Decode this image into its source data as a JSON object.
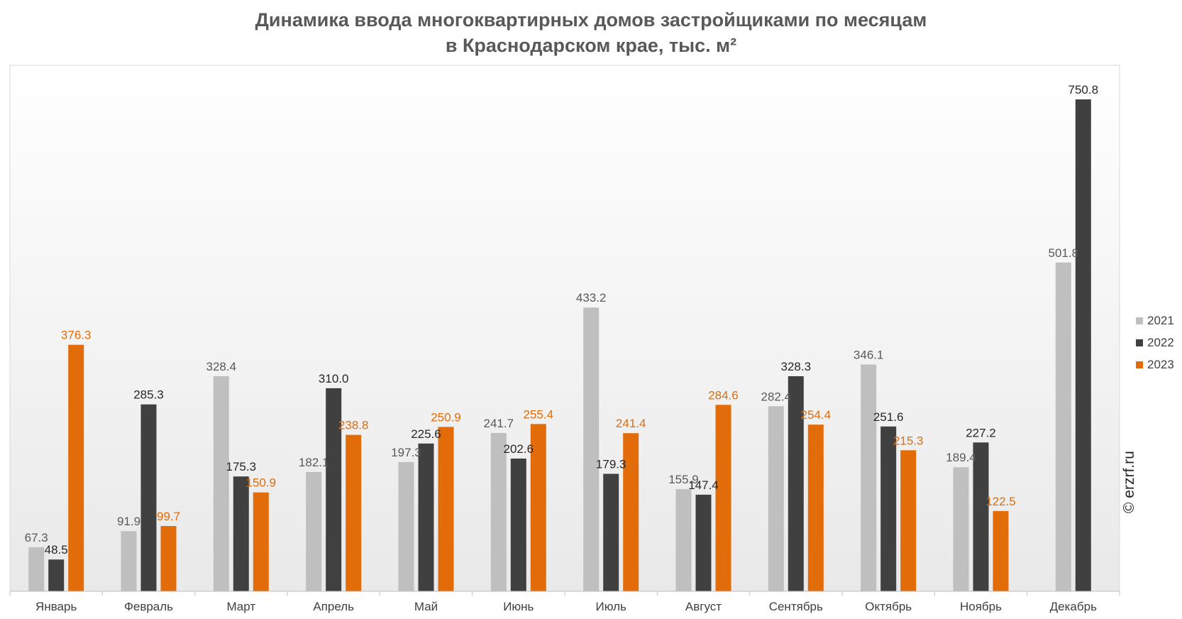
{
  "title_lines": [
    "Динамика ввода многоквартирных домов застройщиками по месяцам",
    "в Краснодарском крае, тыс. м²"
  ],
  "watermark": "© erzrf.ru",
  "colors": {
    "2021": "#bfbfbf",
    "2022": "#404040",
    "2023": "#e36c0a"
  },
  "chart_data": {
    "type": "bar",
    "title": "Динамика ввода многоквартирных домов застройщиками по месяцам в Краснодарском крае, тыс. м²",
    "categories": [
      "Январь",
      "Февраль",
      "Март",
      "Апрель",
      "Май",
      "Июнь",
      "Июль",
      "Август",
      "Сентябрь",
      "Октябрь",
      "Ноябрь",
      "Декабрь"
    ],
    "series": [
      {
        "name": "2021",
        "values": [
          67.3,
          91.9,
          328.4,
          182.1,
          197.3,
          241.7,
          433.2,
          155.9,
          282.4,
          346.1,
          189.4,
          501.8
        ]
      },
      {
        "name": "2022",
        "values": [
          48.5,
          285.3,
          175.3,
          310.0,
          225.6,
          202.6,
          179.3,
          147.4,
          328.3,
          251.6,
          227.2,
          750.8
        ]
      },
      {
        "name": "2023",
        "values": [
          376.3,
          99.7,
          150.9,
          238.8,
          250.9,
          255.4,
          241.4,
          284.6,
          254.4,
          215.3,
          122.5,
          null
        ]
      }
    ],
    "ylim": [
      0,
      800
    ],
    "grid": false,
    "legend": "right",
    "data_labels": true
  }
}
